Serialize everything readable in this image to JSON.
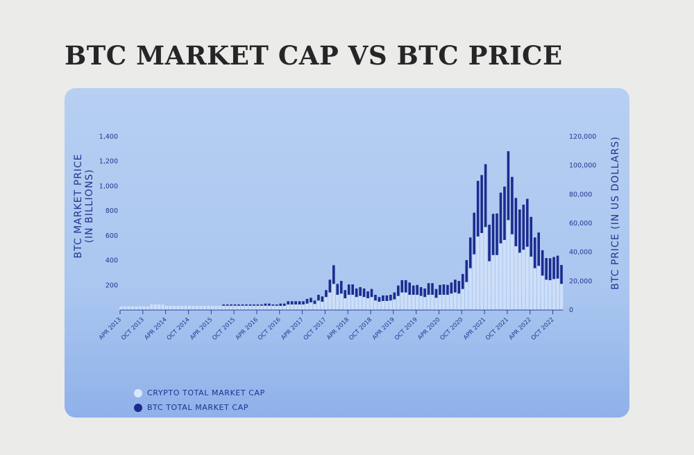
{
  "title": "BTC MARKET CAP VS BTC PRICE",
  "colors": {
    "light_bar": "#d3e3f9",
    "dark_bar": "#1b2c8e",
    "text": "#22348f",
    "card": "#b0caf1"
  },
  "legend": [
    {
      "label": "CRYPTO TOTAL MARKET CAP",
      "color": "#d9e7fa"
    },
    {
      "label": "BTC TOTAL MARKET CAP",
      "color": "#1b2c8e"
    }
  ],
  "chart_data": {
    "type": "bar",
    "title": "BTC MARKET CAP VS BTC PRICE",
    "ylabel_left": [
      "BTC MARKET PRICE",
      "(IN BILLIONS)"
    ],
    "ylabel_right": "BTC PRICE (IN US DOLLARS)",
    "ylim_left": [
      0,
      1400
    ],
    "ylim_right": [
      0,
      120000
    ],
    "yticks_left": [
      "200",
      "400",
      "600",
      "800",
      "1,000",
      "1,200",
      "1,400"
    ],
    "yticks_left_values": [
      200,
      400,
      600,
      800,
      1000,
      1200,
      1400
    ],
    "yticks_right": [
      "0",
      "20,000",
      "40,000",
      "60,000",
      "80,000",
      "100,000",
      "120,000"
    ],
    "yticks_right_values": [
      0,
      20000,
      40000,
      60000,
      80000,
      100000,
      120000
    ],
    "xtick_labels": [
      "APR 2013",
      "OCT 2013",
      "APR 2014",
      "OCT 2014",
      "APR 2015",
      "OCT 2015",
      "APR 2016",
      "OCT 2016",
      "APR 2017",
      "OCT 2017",
      "APR 2018",
      "OCT 2018",
      "APR 2019",
      "OCT 2019",
      "APR 2020",
      "OCT 2020",
      "APR 2021",
      "OCT 2021",
      "APR 2022",
      "OCT 2022"
    ],
    "categories": [
      "2013-04",
      "2013-05",
      "2013-06",
      "2013-07",
      "2013-08",
      "2013-09",
      "2013-10",
      "2013-11",
      "2013-12",
      "2014-01",
      "2014-02",
      "2014-03",
      "2014-04",
      "2014-05",
      "2014-06",
      "2014-07",
      "2014-08",
      "2014-09",
      "2014-10",
      "2014-11",
      "2014-12",
      "2015-01",
      "2015-02",
      "2015-03",
      "2015-04",
      "2015-05",
      "2015-06",
      "2015-07",
      "2015-08",
      "2015-09",
      "2015-10",
      "2015-11",
      "2015-12",
      "2016-01",
      "2016-02",
      "2016-03",
      "2016-04",
      "2016-05",
      "2016-06",
      "2016-07",
      "2016-08",
      "2016-09",
      "2016-10",
      "2016-11",
      "2016-12",
      "2017-01",
      "2017-02",
      "2017-03",
      "2017-04",
      "2017-05",
      "2017-06",
      "2017-07",
      "2017-08",
      "2017-09",
      "2017-10",
      "2017-11",
      "2017-12",
      "2018-01",
      "2018-02",
      "2018-03",
      "2018-04",
      "2018-05",
      "2018-06",
      "2018-07",
      "2018-08",
      "2018-09",
      "2018-10",
      "2018-11",
      "2018-12",
      "2019-01",
      "2019-02",
      "2019-03",
      "2019-04",
      "2019-05",
      "2019-06",
      "2019-07",
      "2019-08",
      "2019-09",
      "2019-10",
      "2019-11",
      "2019-12",
      "2020-01",
      "2020-02",
      "2020-03",
      "2020-04",
      "2020-05",
      "2020-06",
      "2020-07",
      "2020-08",
      "2020-09",
      "2020-10",
      "2020-11",
      "2020-12",
      "2021-01",
      "2021-02",
      "2021-03",
      "2021-04",
      "2021-05",
      "2021-06",
      "2021-07",
      "2021-08",
      "2021-09",
      "2021-10",
      "2021-11",
      "2021-12",
      "2022-01",
      "2022-02",
      "2022-03",
      "2022-04",
      "2022-05",
      "2022-06",
      "2022-07",
      "2022-08",
      "2022-09",
      "2022-10",
      "2022-11",
      "2022-12"
    ],
    "series": [
      {
        "name": "CRYPTO TOTAL MARKET CAP",
        "values": [
          30,
          30,
          30,
          30,
          30,
          30,
          30,
          30,
          45,
          45,
          45,
          45,
          35,
          35,
          35,
          35,
          35,
          35,
          35,
          35,
          35,
          35,
          35,
          35,
          35,
          35,
          35,
          35,
          35,
          35,
          35,
          35,
          35,
          35,
          35,
          35,
          35,
          35,
          35,
          35,
          35,
          35,
          34,
          34,
          45,
          45,
          45,
          45,
          45,
          52,
          62,
          49,
          77,
          67,
          105,
          142,
          211,
          123,
          133,
          95,
          123,
          123,
          105,
          114,
          105,
          95,
          105,
          77,
          67,
          73,
          73,
          77,
          86,
          114,
          142,
          142,
          123,
          123,
          123,
          114,
          105,
          123,
          123,
          99,
          123,
          123,
          123,
          133,
          142,
          133,
          170,
          226,
          338,
          450,
          594,
          622,
          670,
          394,
          444,
          444,
          538,
          566,
          726,
          612,
          515,
          463,
          487,
          511,
          431,
          338,
          357,
          278,
          245,
          241,
          250,
          254,
          211
        ]
      },
      {
        "name": "BTC TOTAL MARKET CAP",
        "values": [
          30,
          30,
          30,
          30,
          30,
          30,
          30,
          30,
          45,
          45,
          45,
          45,
          35,
          35,
          35,
          35,
          35,
          35,
          35,
          35,
          35,
          35,
          35,
          35,
          35,
          35,
          35,
          45,
          45,
          45,
          45,
          45,
          45,
          45,
          45,
          45,
          45,
          45,
          52,
          52,
          45,
          45,
          52,
          52,
          71,
          71,
          71,
          71,
          71,
          90,
          99,
          77,
          123,
          110,
          161,
          245,
          362,
          211,
          235,
          161,
          207,
          207,
          174,
          185,
          174,
          151,
          170,
          123,
          105,
          118,
          118,
          123,
          142,
          198,
          241,
          241,
          222,
          198,
          203,
          185,
          174,
          217,
          217,
          170,
          203,
          207,
          203,
          222,
          245,
          235,
          291,
          403,
          586,
          786,
          1043,
          1090,
          1178,
          689,
          777,
          780,
          948,
          997,
          1282,
          1075,
          905,
          812,
          851,
          898,
          752,
          586,
          626,
          483,
          420,
          418,
          428,
          439,
          364
        ]
      }
    ],
    "legend_position": "bottom-left",
    "grid": false
  }
}
